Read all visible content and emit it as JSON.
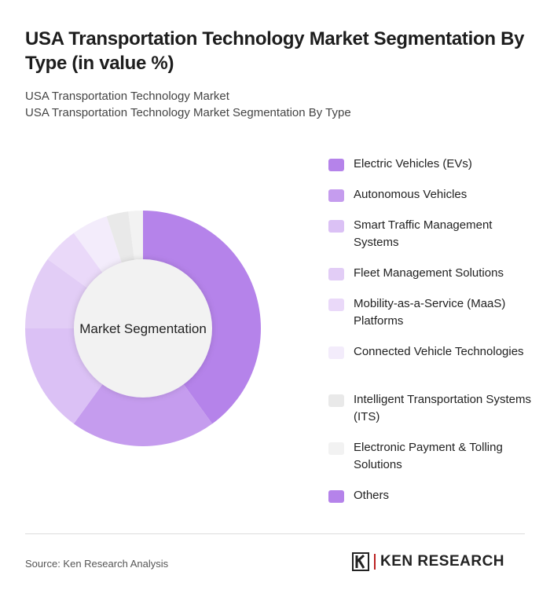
{
  "title": "USA Transportation Technology Market Segmentation By Type (in value %)",
  "subtitle1": "USA Transportation Technology Market",
  "subtitle2": "USA Transportation Technology Market Segmentation By Type",
  "source": "Source: Ken Research Analysis",
  "logo_text": "KEN RESEARCH",
  "chart_data": {
    "type": "donut",
    "center_label": "Market Segmentation",
    "legend_position": "right",
    "categories": [
      "Electric Vehicles (EVs)",
      "Autonomous Vehicles",
      "Smart Traffic Management Systems",
      "Fleet Management Solutions",
      "Mobility-as-a-Service (MaaS) Platforms",
      "Connected Vehicle Technologies",
      "Intelligent Transportation Systems (ITS)",
      "Electronic Payment & Tolling Solutions",
      "Others"
    ],
    "values": [
      40,
      20,
      15,
      10,
      5,
      5,
      3,
      2,
      0
    ],
    "colors": [
      "#b583ea",
      "#c59cee",
      "#dbc1f5",
      "#e2cdf6",
      "#ead9f9",
      "#f3ecfb",
      "#e9e9e9",
      "#f2f2f2",
      "#b583ea"
    ]
  }
}
